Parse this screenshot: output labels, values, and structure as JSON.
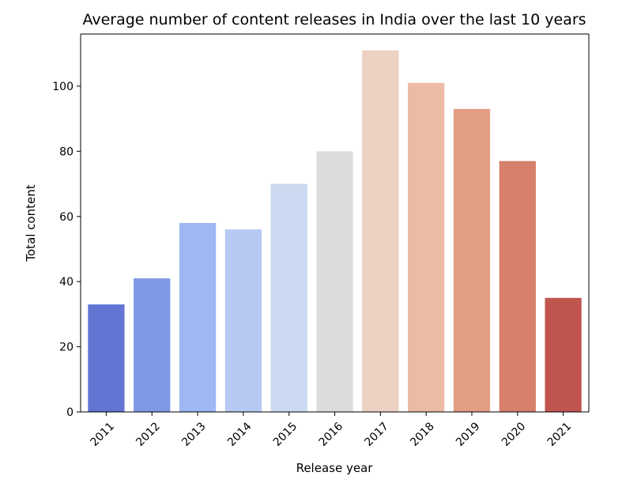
{
  "chart_data": {
    "type": "bar",
    "title": "Average number of content releases in India over the last 10 years",
    "xlabel": "Release year",
    "ylabel": "Total content",
    "categories": [
      "2011",
      "2012",
      "2013",
      "2014",
      "2015",
      "2016",
      "2017",
      "2018",
      "2019",
      "2020",
      "2021"
    ],
    "values": [
      33,
      41,
      58,
      56,
      70,
      80,
      111,
      101,
      93,
      77,
      35
    ],
    "colors": [
      "#6275d3",
      "#7f99e6",
      "#9db8f3",
      "#b5c9f3",
      "#cbd8ef",
      "#dddcdc",
      "#edd1c2",
      "#ecbba5",
      "#e39d83",
      "#d67f6a",
      "#c0554f"
    ],
    "ylim": [
      0,
      116
    ],
    "yticks": [
      0,
      20,
      40,
      60,
      80,
      100
    ],
    "grid": false
  }
}
